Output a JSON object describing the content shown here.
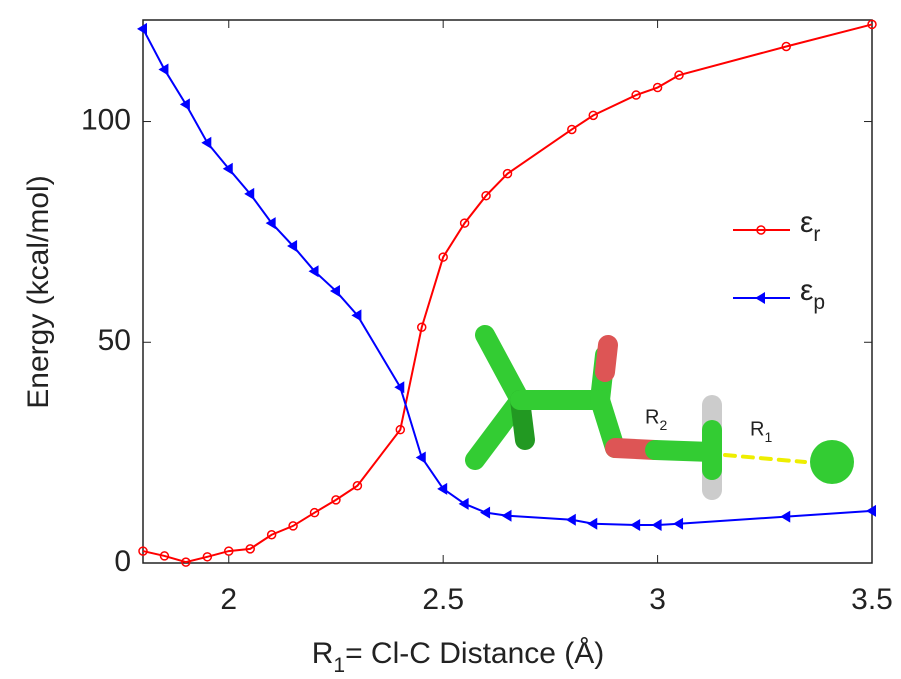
{
  "chart_data": {
    "type": "line",
    "x_label": "R1= Cl-C Distance (Å)",
    "y_label": "Energy (kcal/mol)",
    "xlim": [
      1.8,
      3.5
    ],
    "ylim": [
      0,
      123
    ],
    "xticks": [
      2,
      2.5,
      3,
      3.5
    ],
    "yticks": [
      0,
      50,
      100
    ],
    "legend": "right",
    "x": [
      1.8,
      1.85,
      1.9,
      1.95,
      2.0,
      2.05,
      2.1,
      2.15,
      2.2,
      2.25,
      2.3,
      2.4,
      2.45,
      2.5,
      2.55,
      2.6,
      2.65,
      2.8,
      2.85,
      2.95,
      3.0,
      3.05,
      3.3,
      3.5
    ],
    "series": [
      {
        "name": "εr",
        "color": "#ff0000",
        "marker": "circle",
        "values": [
          2.7,
          1.6,
          0.2,
          1.4,
          2.7,
          3.2,
          6.4,
          8.4,
          11.4,
          14.3,
          17.5,
          30.2,
          53.4,
          69.3,
          77,
          83.2,
          88.2,
          98.2,
          101.4,
          106,
          107.7,
          110.5,
          117,
          122
        ]
      },
      {
        "name": "εp",
        "color": "#0000ff",
        "marker": "triangle-left",
        "values": [
          121,
          111.8,
          103.9,
          95.2,
          89.3,
          83.6,
          77,
          71.8,
          66.1,
          61.6,
          56.1,
          39.8,
          23.9,
          16.8,
          13.4,
          11.4,
          10.7,
          9.8,
          8.9,
          8.6,
          8.6,
          8.9,
          10.5,
          11.8
        ]
      }
    ],
    "annotations": [
      "R2",
      "R1"
    ]
  }
}
